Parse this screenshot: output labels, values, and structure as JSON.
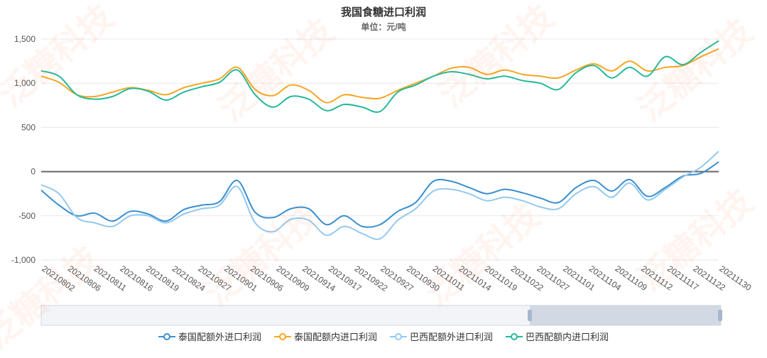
{
  "title": "我国食糖进口利润",
  "subtitle": "单位：元/吨",
  "watermark": "泛糖科技",
  "colors": {
    "thai_out": "#3a8fd0",
    "thai_in": "#f5a623",
    "brazil_out": "#93c9ef",
    "brazil_in": "#26b99a",
    "zero_line": "#666666",
    "grid": "#e8e8e8",
    "axis_text": "#555555",
    "slider_bg": "#dfe3ea",
    "slider_sel": "#c9d2e0"
  },
  "chart_data": {
    "type": "line",
    "ylim": [
      -1000,
      1500
    ],
    "y_ticks": [
      "1,500",
      "1,000",
      "500",
      "0",
      "-500",
      "-1,000"
    ],
    "x_tick_labels": [
      "20210802",
      "20210806",
      "20210811",
      "20210816",
      "20210819",
      "20210824",
      "20210827",
      "20210901",
      "20210906",
      "20210909",
      "20210914",
      "20210917",
      "20210922",
      "20210927",
      "20210930",
      "20211011",
      "20211014",
      "20211019",
      "20211022",
      "20211027",
      "20211101",
      "20211104",
      "20211109",
      "20211112",
      "20211117",
      "20211122",
      "20211130"
    ],
    "legend_position": "bottom",
    "grid": true,
    "series": [
      {
        "name": "泰国配额外进口利润",
        "color_key": "thai_out",
        "values": [
          -210,
          -380,
          -500,
          -470,
          -560,
          -450,
          -480,
          -560,
          -430,
          -380,
          -340,
          -100,
          -460,
          -520,
          -420,
          -420,
          -600,
          -500,
          -620,
          -600,
          -450,
          -350,
          -110,
          -110,
          -180,
          -250,
          -200,
          -240,
          -300,
          -350,
          -180,
          -100,
          -220,
          -90,
          -280,
          -180,
          -50,
          -20,
          110
        ]
      },
      {
        "name": "泰国配额内进口利润",
        "color_key": "thai_in",
        "values": [
          1080,
          1010,
          870,
          850,
          900,
          950,
          920,
          870,
          950,
          1000,
          1050,
          1180,
          930,
          860,
          980,
          920,
          780,
          870,
          840,
          830,
          920,
          1000,
          1080,
          1170,
          1180,
          1100,
          1150,
          1100,
          1080,
          1060,
          1150,
          1220,
          1140,
          1250,
          1140,
          1180,
          1200,
          1300,
          1390
        ]
      },
      {
        "name": "巴西配额外进口利润",
        "color_key": "brazil_out",
        "values": [
          -150,
          -250,
          -520,
          -580,
          -620,
          -500,
          -500,
          -580,
          -480,
          -420,
          -380,
          -170,
          -580,
          -680,
          -540,
          -550,
          -720,
          -620,
          -700,
          -760,
          -550,
          -420,
          -220,
          -200,
          -250,
          -330,
          -290,
          -330,
          -400,
          -420,
          -250,
          -170,
          -290,
          -130,
          -320,
          -200,
          -60,
          50,
          230
        ]
      },
      {
        "name": "巴西配额内进口利润",
        "color_key": "brazil_in",
        "values": [
          1140,
          1080,
          870,
          820,
          850,
          940,
          910,
          810,
          900,
          960,
          1010,
          1150,
          870,
          730,
          850,
          820,
          690,
          760,
          730,
          680,
          900,
          980,
          1080,
          1130,
          1100,
          1050,
          1080,
          1030,
          1000,
          930,
          1120,
          1200,
          1060,
          1180,
          1080,
          1300,
          1210,
          1350,
          1480
        ]
      }
    ]
  }
}
